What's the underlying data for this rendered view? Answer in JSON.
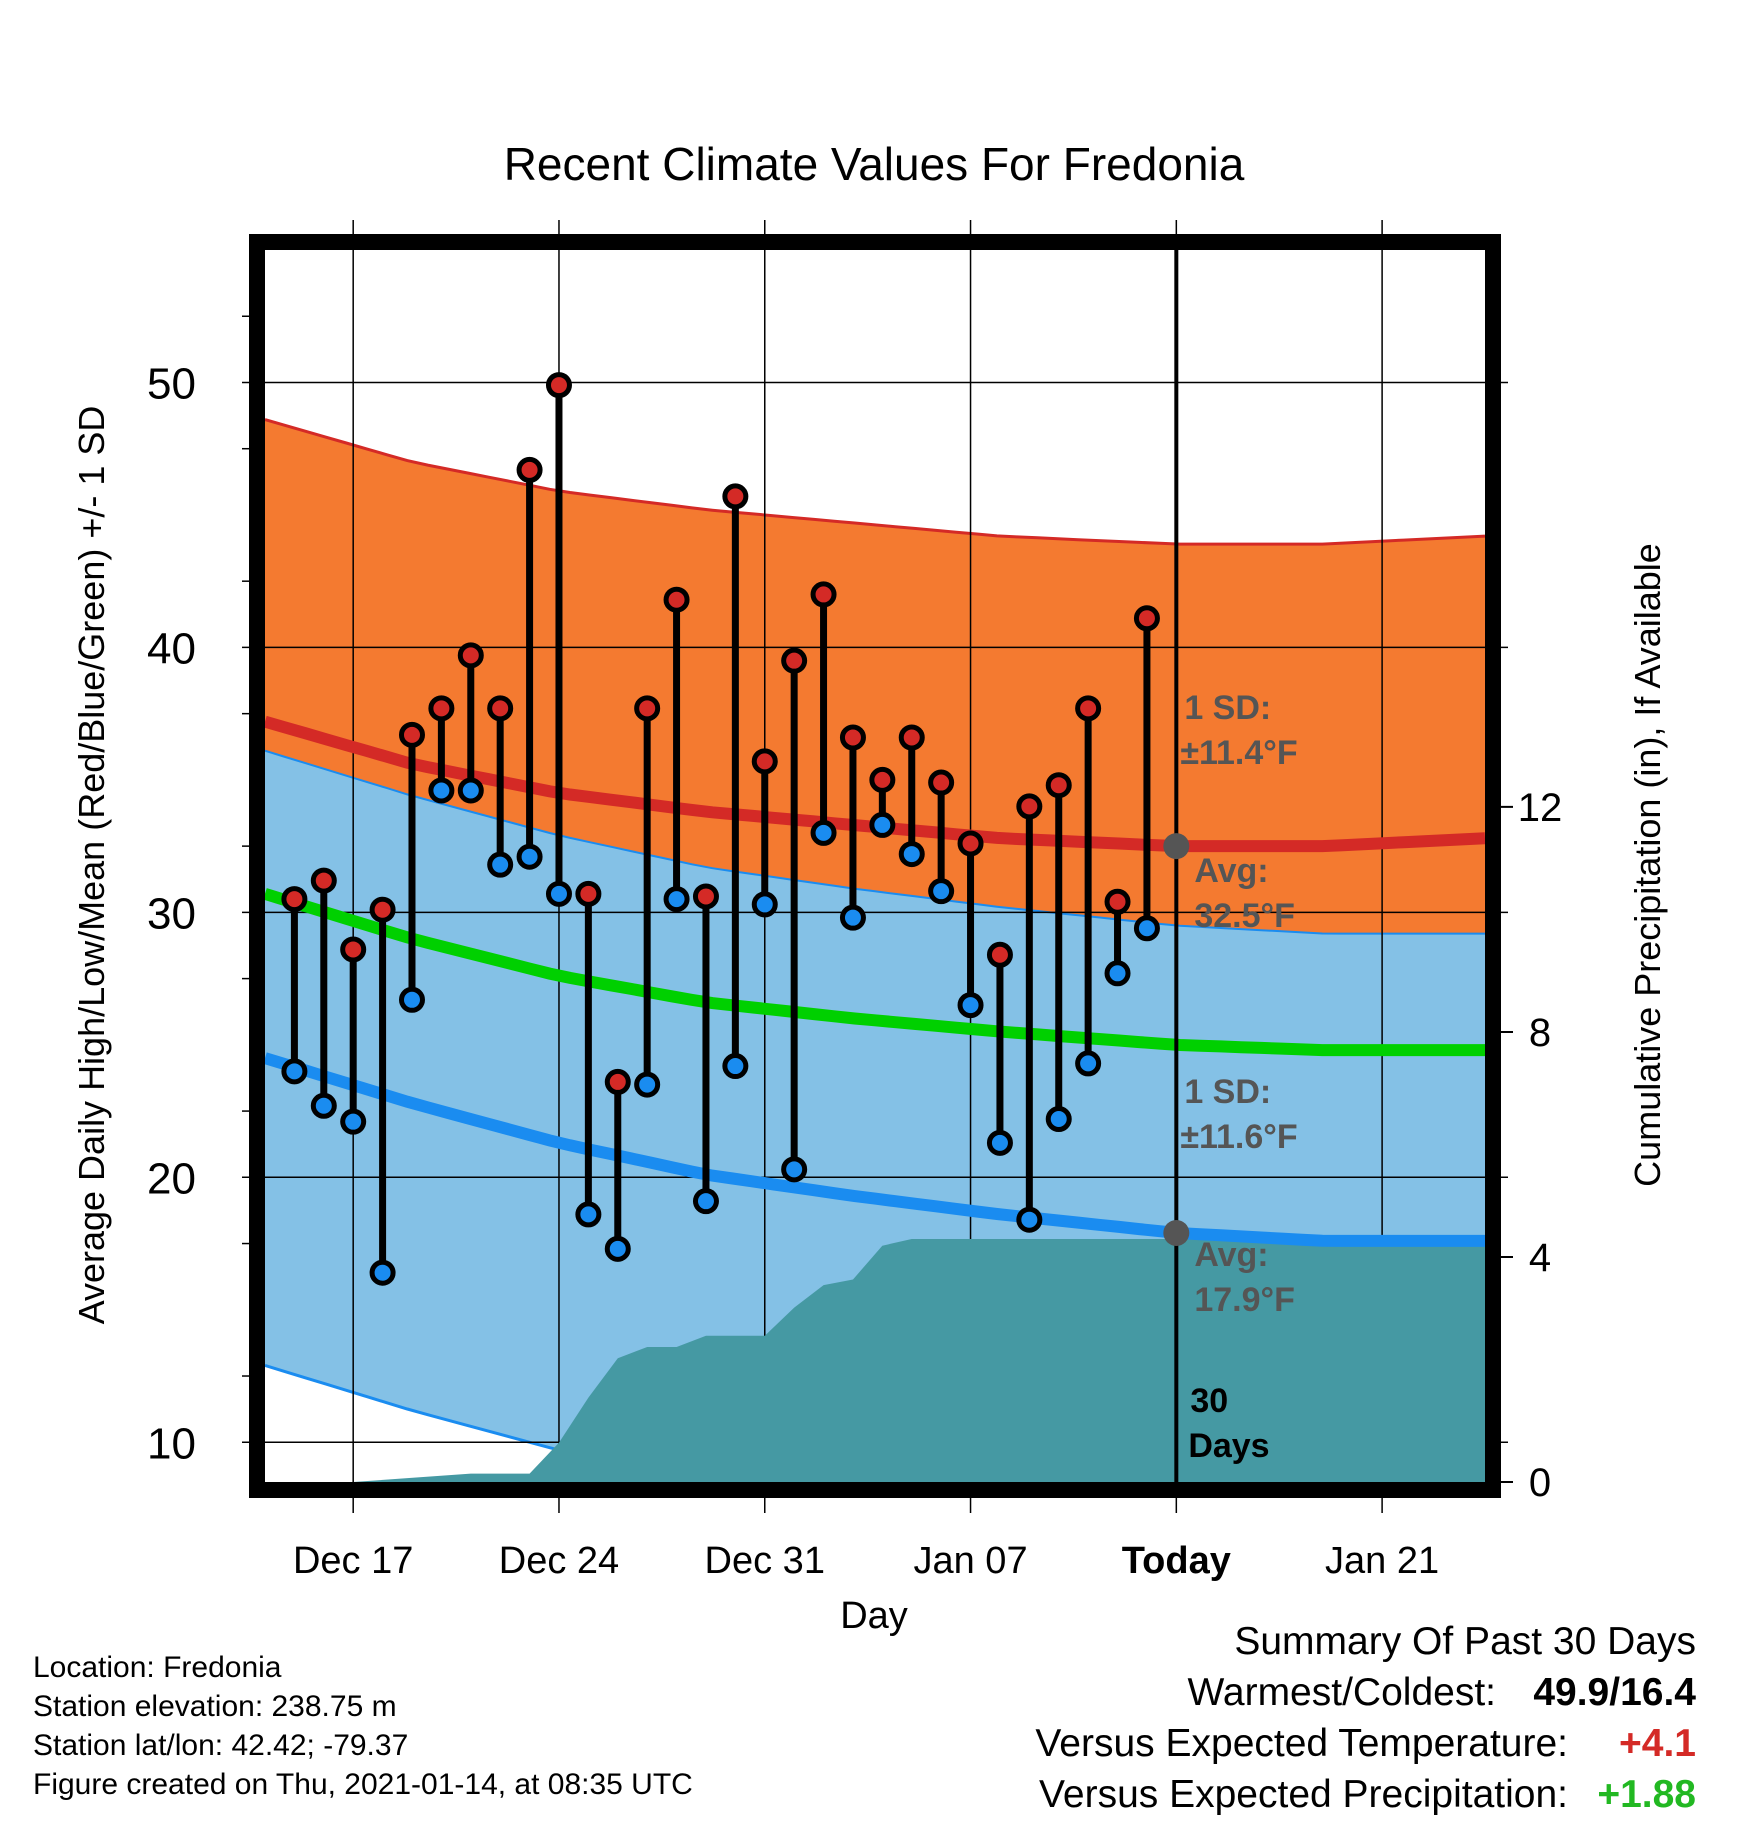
{
  "chart_data": {
    "type": "line",
    "title": "Recent Climate Values For Fredonia",
    "xlabel": "Day",
    "ylabel": "Average Daily High/Low/Mean (Red/Blue/Green) +/- 1 SD",
    "y2label": "Cumulative Precipitation (in), If Available",
    "ylim": [
      8.5,
      55
    ],
    "y2lim": [
      0,
      21.9
    ],
    "yticks": [
      "10",
      "20",
      "30",
      "40",
      "50"
    ],
    "y2ticks": [
      "0",
      "4",
      "8",
      "12"
    ],
    "xtick_labels": [
      "Dec 17",
      "Dec 24",
      "Dec 31",
      "Jan 07",
      "Today",
      "Jan 21"
    ],
    "xtick_days": [
      3,
      10,
      17,
      24,
      31,
      38
    ],
    "xlim": [
      0,
      41.5
    ],
    "grid": true,
    "days": [
      1,
      2,
      3,
      4,
      5,
      6,
      7,
      8,
      9,
      10,
      11,
      12,
      13,
      14,
      15,
      16,
      17,
      18,
      19,
      20,
      21,
      22,
      23,
      24,
      25,
      26,
      27,
      28,
      29,
      30
    ],
    "daily_high": [
      30.5,
      31.2,
      28.6,
      30.1,
      36.7,
      37.7,
      39.7,
      37.7,
      46.7,
      49.9,
      30.7,
      23.6,
      37.7,
      41.8,
      30.6,
      45.7,
      35.7,
      39.5,
      42.0,
      36.6,
      35.0,
      36.6,
      34.9,
      32.6,
      28.4,
      34.0,
      34.8,
      37.7,
      30.4,
      41.1
    ],
    "daily_low": [
      24.0,
      22.7,
      22.1,
      16.4,
      26.7,
      34.6,
      34.6,
      31.8,
      32.1,
      30.7,
      18.6,
      17.3,
      23.5,
      30.5,
      19.1,
      24.2,
      30.3,
      20.3,
      33.0,
      29.8,
      33.3,
      32.2,
      30.8,
      26.5,
      21.3,
      18.4,
      22.2,
      24.3,
      27.7,
      29.4
    ],
    "normals_days": [
      0,
      41.5
    ],
    "normal_high_range": [
      37.2,
      32.8
    ],
    "normal_high_curve": [
      [
        0,
        37.2
      ],
      [
        5,
        35.6
      ],
      [
        10,
        34.5
      ],
      [
        15,
        33.8
      ],
      [
        20,
        33.3
      ],
      [
        25,
        32.8
      ],
      [
        31,
        32.5
      ],
      [
        36,
        32.5
      ],
      [
        41.5,
        32.8
      ]
    ],
    "normal_high_sd": 11.4,
    "normal_low_curve": [
      [
        0,
        24.5
      ],
      [
        5,
        22.8
      ],
      [
        10,
        21.3
      ],
      [
        15,
        20.1
      ],
      [
        20,
        19.3
      ],
      [
        25,
        18.6
      ],
      [
        31,
        17.9
      ],
      [
        36,
        17.6
      ],
      [
        41.5,
        17.6
      ]
    ],
    "normal_low_sd": 11.6,
    "normal_mean_curve": [
      [
        0,
        30.7
      ],
      [
        5,
        29.0
      ],
      [
        10,
        27.6
      ],
      [
        15,
        26.6
      ],
      [
        20,
        26.0
      ],
      [
        25,
        25.5
      ],
      [
        31,
        25.0
      ],
      [
        36,
        24.8
      ],
      [
        41.5,
        24.8
      ]
    ],
    "cumulative_precip": [
      [
        3,
        0.0
      ],
      [
        7,
        0.15
      ],
      [
        8,
        0.15
      ],
      [
        9,
        0.15
      ],
      [
        10,
        0.7
      ],
      [
        11,
        1.5
      ],
      [
        12,
        2.2
      ],
      [
        13,
        2.4
      ],
      [
        14,
        2.4
      ],
      [
        15,
        2.6
      ],
      [
        16,
        2.6
      ],
      [
        17,
        2.6
      ],
      [
        18,
        3.1
      ],
      [
        19,
        3.5
      ],
      [
        20,
        3.6
      ],
      [
        21,
        4.2
      ],
      [
        22,
        4.32
      ],
      [
        41.5,
        4.32
      ]
    ],
    "today_day": 31,
    "today_label": "30 Days",
    "annotations": {
      "high_sd": "1 SD:",
      "high_sd_value": "±11.4°F",
      "high_avg": "Avg:",
      "high_avg_value": "32.5°F",
      "low_sd": "1 SD:",
      "low_sd_value": "±11.6°F",
      "low_avg": "Avg:",
      "low_avg_value": "17.9°F"
    },
    "colors": {
      "high_band": "#f47a30",
      "mid_band": "#931416",
      "low_band": "#84c1e6",
      "high_line": "#d42a26",
      "mean_line": "#00d000",
      "low_line": "#1a8cf0",
      "precip": "#4599a3",
      "high_dot": "#d42a26",
      "low_dot": "#1a8cf0"
    }
  },
  "station": {
    "location": "Location: Fredonia",
    "elevation": "Station elevation: 238.75 m",
    "latlon": "Station lat/lon: 42.42; -79.37",
    "created": "Figure created on Thu, 2021-01-14, at 08:35 UTC"
  },
  "summary": {
    "heading": "Summary Of Past 30 Days",
    "warm_cold_label": "Warmest/Coldest:",
    "warm_cold_value": "49.9/16.4",
    "temp_label": "Versus Expected Temperature:",
    "temp_value": "+4.1",
    "temp_color": "#d42a26",
    "precip_label": "Versus Expected Precipitation:",
    "precip_value": "+1.88",
    "precip_color": "#22b822"
  }
}
